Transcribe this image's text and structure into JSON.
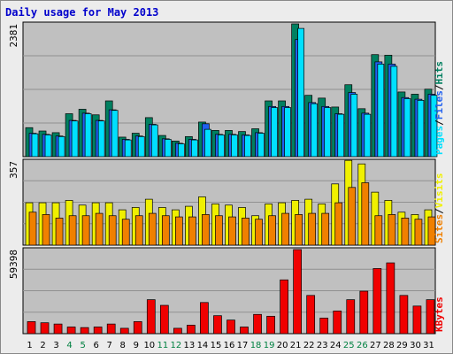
{
  "title": "Daily usage for May 2013",
  "colors": {
    "background": "#ececec",
    "plot": "#c0c0c0",
    "grid": "#909090",
    "pages": "#00e0ff",
    "files": "#2060f0",
    "hits": "#008060",
    "visits": "#f0f000",
    "sites": "#f08000",
    "kbytes": "#f00000",
    "weekend_day": "#008040",
    "weekday": "#000000"
  },
  "chart_data": [
    {
      "type": "bar",
      "panel": "hits-files-pages",
      "y_max_label": "2381",
      "ylim": [
        0,
        2381
      ],
      "right_labels": [
        {
          "text": "Pages",
          "color": "#00e0ff"
        },
        {
          "text": "/",
          "color": "#000000"
        },
        {
          "text": "Files",
          "color": "#2060f0"
        },
        {
          "text": "/",
          "color": "#000000"
        },
        {
          "text": "Hits",
          "color": "#008060"
        }
      ],
      "categories": [
        "1",
        "2",
        "3",
        "4",
        "5",
        "6",
        "7",
        "8",
        "9",
        "10",
        "11",
        "12",
        "13",
        "14",
        "15",
        "16",
        "17",
        "18",
        "19",
        "20",
        "21",
        "22",
        "23",
        "24",
        "25",
        "26",
        "27",
        "28",
        "29",
        "30",
        "31"
      ],
      "series": [
        {
          "name": "Hits",
          "color": "#008060",
          "values": [
            520,
            460,
            430,
            770,
            850,
            750,
            1000,
            350,
            420,
            700,
            380,
            280,
            360,
            620,
            470,
            470,
            450,
            500,
            1000,
            1000,
            2381,
            1100,
            1050,
            890,
            1290,
            860,
            1830,
            1820,
            1160,
            1120,
            1210
          ]
        },
        {
          "name": "Files",
          "color": "#2060f0",
          "values": [
            420,
            400,
            370,
            650,
            780,
            650,
            840,
            310,
            370,
            580,
            320,
            240,
            310,
            590,
            400,
            400,
            390,
            430,
            900,
            900,
            2100,
            970,
            900,
            770,
            1150,
            780,
            1700,
            1660,
            1060,
            1030,
            1120
          ]
        },
        {
          "name": "Pages",
          "color": "#00e0ff",
          "values": [
            410,
            390,
            360,
            640,
            770,
            640,
            830,
            300,
            360,
            570,
            310,
            230,
            300,
            490,
            390,
            390,
            380,
            420,
            880,
            880,
            2300,
            950,
            880,
            760,
            1120,
            760,
            1660,
            1620,
            1040,
            1010,
            1100
          ]
        }
      ]
    },
    {
      "type": "bar",
      "panel": "visits-sites",
      "y_max_label": "357",
      "ylim": [
        0,
        357
      ],
      "right_labels": [
        {
          "text": "Sites",
          "color": "#f08000"
        },
        {
          "text": "/",
          "color": "#000000"
        },
        {
          "text": "Visits",
          "color": "#f0f000"
        }
      ],
      "categories": [
        "1",
        "2",
        "3",
        "4",
        "5",
        "6",
        "7",
        "8",
        "9",
        "10",
        "11",
        "12",
        "13",
        "14",
        "15",
        "16",
        "17",
        "18",
        "19",
        "20",
        "21",
        "22",
        "23",
        "24",
        "25",
        "26",
        "27",
        "28",
        "29",
        "30",
        "31"
      ],
      "series": [
        {
          "name": "Visits",
          "color": "#f0f000",
          "values": [
            180,
            180,
            180,
            190,
            170,
            180,
            180,
            150,
            160,
            195,
            160,
            150,
            165,
            205,
            175,
            170,
            160,
            125,
            175,
            180,
            190,
            195,
            175,
            260,
            360,
            345,
            225,
            190,
            140,
            130,
            150
          ]
        },
        {
          "name": "Sites",
          "color": "#f08000",
          "values": [
            140,
            130,
            115,
            125,
            125,
            135,
            125,
            110,
            125,
            135,
            125,
            120,
            120,
            130,
            125,
            120,
            115,
            110,
            125,
            135,
            130,
            135,
            135,
            180,
            245,
            265,
            125,
            130,
            115,
            110,
            120
          ]
        }
      ]
    },
    {
      "type": "bar",
      "panel": "kbytes",
      "y_max_label": "59398",
      "ylim": [
        0,
        59398
      ],
      "right_labels": [
        {
          "text": "KBytes",
          "color": "#f00000"
        }
      ],
      "categories": [
        "1",
        "2",
        "3",
        "4",
        "5",
        "6",
        "7",
        "8",
        "9",
        "10",
        "11",
        "12",
        "13",
        "14",
        "15",
        "16",
        "17",
        "18",
        "19",
        "20",
        "21",
        "22",
        "23",
        "24",
        "25",
        "26",
        "27",
        "28",
        "29",
        "30",
        "31"
      ],
      "series": [
        {
          "name": "KBytes",
          "color": "#f00000",
          "values": [
            8500,
            7700,
            6800,
            4700,
            4300,
            4700,
            6800,
            3800,
            8500,
            24000,
            20000,
            3800,
            6000,
            22000,
            12700,
            9600,
            4700,
            13600,
            12300,
            38000,
            59398,
            27000,
            11000,
            16000,
            24000,
            30000,
            46000,
            50000,
            27000,
            19500,
            24000
          ]
        }
      ]
    }
  ],
  "x_axis": {
    "labels": [
      "1",
      "2",
      "3",
      "4",
      "5",
      "6",
      "7",
      "8",
      "9",
      "10",
      "11",
      "12",
      "13",
      "14",
      "15",
      "16",
      "17",
      "18",
      "19",
      "20",
      "21",
      "22",
      "23",
      "24",
      "25",
      "26",
      "27",
      "28",
      "29",
      "30",
      "31"
    ],
    "weekend": [
      false,
      false,
      false,
      true,
      true,
      false,
      false,
      false,
      false,
      false,
      true,
      true,
      false,
      false,
      false,
      false,
      false,
      true,
      true,
      false,
      false,
      false,
      false,
      false,
      true,
      true,
      false,
      false,
      false,
      false,
      false
    ]
  }
}
